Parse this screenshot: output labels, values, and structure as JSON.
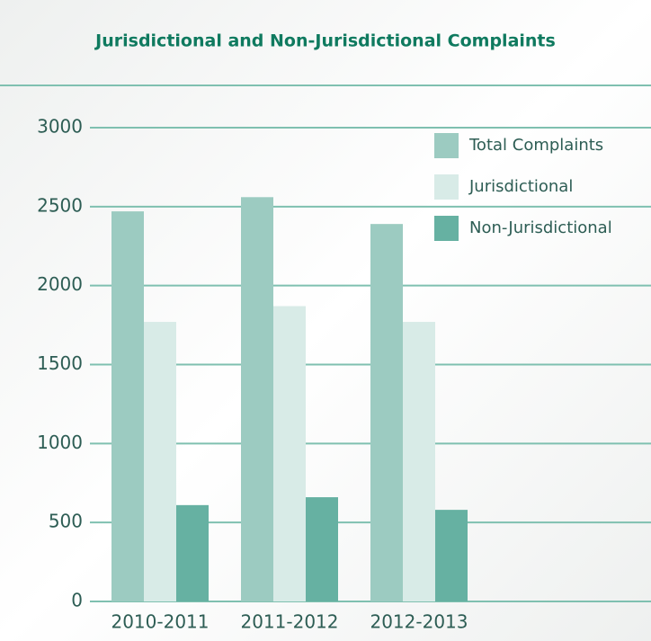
{
  "chart_data": {
    "type": "bar",
    "title": "Jurisdictional and Non-Jurisdictional Complaints",
    "categories": [
      "2010-2011",
      "2011-2012",
      "2012-2013"
    ],
    "series": [
      {
        "name": "Total Complaints",
        "color": "#9ccbc1",
        "values": [
          2470,
          2560,
          2390
        ]
      },
      {
        "name": "Jurisdictional",
        "color": "#d8ebe7",
        "values": [
          1770,
          1870,
          1770
        ]
      },
      {
        "name": "Non-Jurisdictional",
        "color": "#66b1a2",
        "values": [
          610,
          660,
          580
        ]
      }
    ],
    "ylim": [
      0,
      3000
    ],
    "yticks": [
      0,
      500,
      1000,
      1500,
      2000,
      2500,
      3000
    ],
    "grid": true,
    "legend": "upper right"
  }
}
